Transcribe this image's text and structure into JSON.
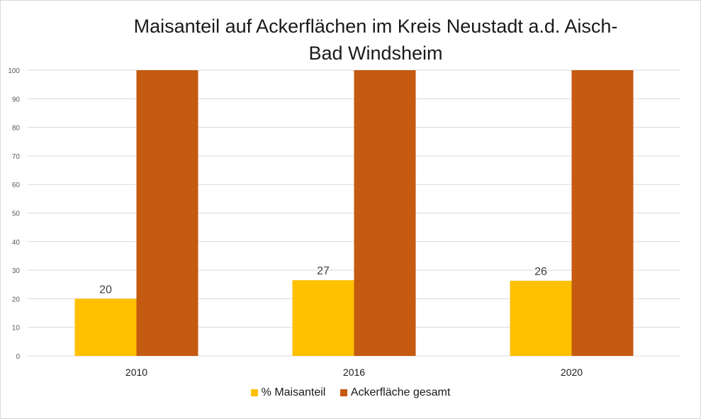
{
  "chart_data": {
    "type": "bar",
    "title": "Maisanteil auf Ackerflächen im Kreis Neustadt a.d. Aisch-Bad Windsheim",
    "title_lines": [
      "Maisanteil auf Ackerflächen im Kreis Neustadt a.d. Aisch-",
      "Bad Windsheim"
    ],
    "categories": [
      "2010",
      "2016",
      "2020"
    ],
    "series": [
      {
        "name": "% Maisanteil",
        "values": [
          20,
          26.5,
          26.3
        ],
        "labels": [
          "20",
          "27",
          "26"
        ],
        "color": "#FFC000"
      },
      {
        "name": "Ackerfläche gesamt",
        "values": [
          100,
          100,
          100
        ],
        "color": "#C55A11"
      }
    ],
    "ylim": [
      0,
      100
    ],
    "yticks": [
      "0",
      "10",
      "20",
      "30",
      "40",
      "50",
      "60",
      "70",
      "80",
      "90",
      "100"
    ],
    "xlabel": "",
    "ylabel": "",
    "grid": true,
    "legend": "bottom"
  }
}
